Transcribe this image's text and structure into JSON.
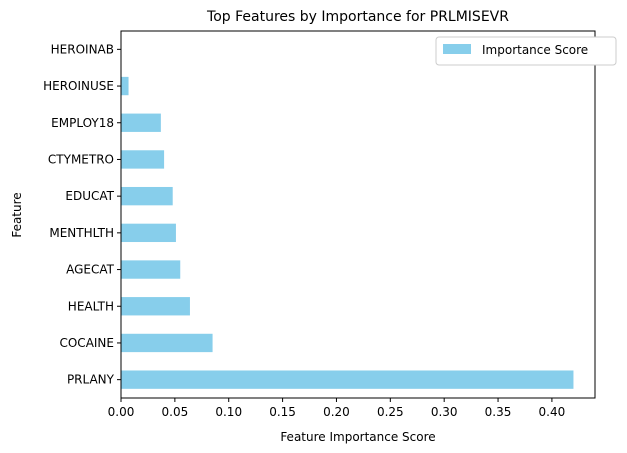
{
  "chart_data": {
    "type": "bar",
    "orientation": "horizontal",
    "title": "Top Features by Importance for PRLMISEVR",
    "xlabel": "Feature Importance Score",
    "ylabel": "Feature",
    "categories": [
      "PRLANY",
      "COCAINE",
      "HEALTH",
      "AGECAT",
      "MENTHLTH",
      "EDUCAT",
      "CTYMETRO",
      "EMPLOY18",
      "HEROINUSE",
      "HEROINAB"
    ],
    "series": [
      {
        "name": "Importance Score",
        "values": [
          0.42,
          0.085,
          0.064,
          0.055,
          0.051,
          0.048,
          0.04,
          0.037,
          0.007,
          0.0
        ]
      }
    ],
    "xlim": [
      0,
      0.44
    ],
    "xticks": [
      "0.00",
      "0.05",
      "0.10",
      "0.15",
      "0.20",
      "0.25",
      "0.30",
      "0.35",
      "0.40"
    ],
    "grid": false,
    "legend_position": "top-right",
    "colors": {
      "bar": "#87ceeb",
      "axis": "#000000",
      "background": "#ffffff"
    }
  }
}
